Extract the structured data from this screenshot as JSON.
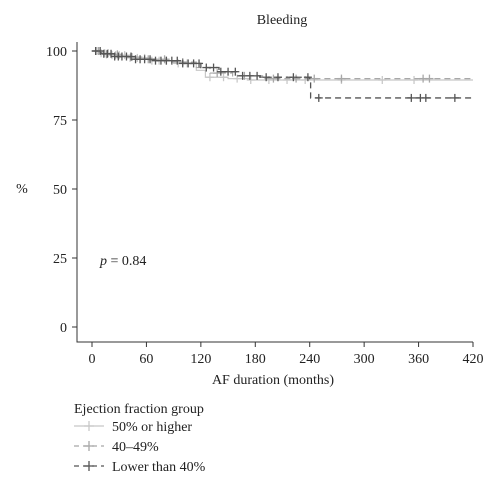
{
  "chart_data": {
    "type": "line",
    "title": "Bleeding",
    "xlabel": "AF duration (months)",
    "ylabel": "%",
    "xlim": [
      0,
      420
    ],
    "ylim": [
      0,
      100
    ],
    "x_ticks": [
      0,
      60,
      120,
      180,
      240,
      300,
      360,
      420
    ],
    "y_ticks": [
      0,
      25,
      50,
      75,
      100
    ],
    "grid": false,
    "annotation": {
      "italic": "p",
      "text": " = 0.84"
    },
    "legend": {
      "title": "Ejection fraction group",
      "placement": "bottom-left"
    },
    "series": [
      {
        "name": "50% or higher",
        "color": "#c8c8c8",
        "dash": "solid",
        "steps": [
          [
            0,
            100
          ],
          [
            8,
            99.2
          ],
          [
            20,
            98.5
          ],
          [
            40,
            97.5
          ],
          [
            65,
            96.5
          ],
          [
            90,
            95.5
          ],
          [
            115,
            93
          ],
          [
            125,
            90.5
          ],
          [
            150,
            90
          ],
          [
            175,
            89.5
          ],
          [
            420,
            89.5
          ]
        ],
        "censor_x": [
          5,
          10,
          14,
          18,
          22,
          26,
          30,
          36,
          42,
          50,
          58,
          66,
          74,
          82,
          95,
          105,
          130,
          145,
          160,
          175,
          195,
          215,
          235,
          275,
          320,
          355
        ]
      },
      {
        "name": "40–49%",
        "color": "#a8a8a8",
        "dash": "dashed",
        "steps": [
          [
            0,
            100
          ],
          [
            12,
            98.8
          ],
          [
            30,
            97.8
          ],
          [
            55,
            97
          ],
          [
            85,
            96
          ],
          [
            115,
            94
          ],
          [
            130,
            92
          ],
          [
            155,
            91
          ],
          [
            190,
            90
          ],
          [
            420,
            90
          ]
        ],
        "censor_x": [
          7,
          16,
          28,
          44,
          62,
          80,
          100,
          138,
          168,
          200,
          225,
          245,
          275,
          365,
          372
        ]
      },
      {
        "name": "Lower than 40%",
        "color": "#555555",
        "dash": "dashed",
        "steps": [
          [
            0,
            100
          ],
          [
            10,
            99
          ],
          [
            25,
            98
          ],
          [
            45,
            97
          ],
          [
            70,
            96.5
          ],
          [
            100,
            95.5
          ],
          [
            120,
            94
          ],
          [
            140,
            92.5
          ],
          [
            160,
            91
          ],
          [
            185,
            90.5
          ],
          [
            240,
            90
          ],
          [
            241,
            83
          ],
          [
            420,
            83
          ]
        ],
        "censor_x": [
          4,
          9,
          13,
          17,
          21,
          25,
          29,
          33,
          38,
          43,
          48,
          53,
          58,
          64,
          70,
          76,
          82,
          88,
          94,
          100,
          106,
          112,
          118,
          126,
          134,
          142,
          150,
          158,
          166,
          174,
          182,
          192,
          205,
          222,
          238,
          250,
          352,
          362,
          368,
          400
        ]
      }
    ]
  }
}
